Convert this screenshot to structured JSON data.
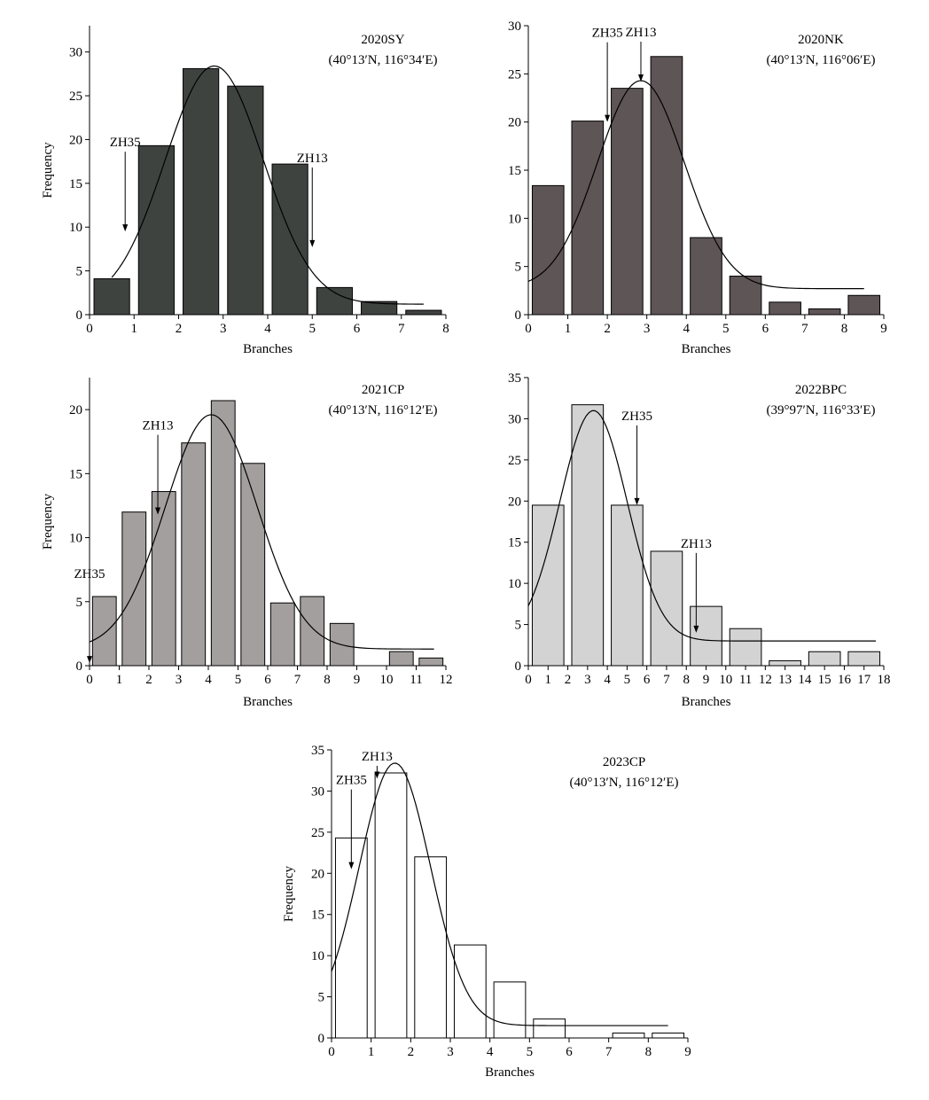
{
  "chart_data": [
    {
      "type": "bar",
      "title": "2020SY",
      "subtitle": "(40°13′N, 116°34′E)",
      "xlabel": "Branches",
      "ylabel": "Frequency",
      "xlim": [
        0,
        8
      ],
      "ylim": [
        0,
        33
      ],
      "xticks": [
        "0",
        "1",
        "2",
        "3",
        "4",
        "5",
        "6",
        "7",
        "8"
      ],
      "yticks": [
        "0",
        "5",
        "10",
        "15",
        "20",
        "25",
        "30"
      ],
      "bar_color": "#3f4340",
      "bins": [
        [
          0.1,
          0.9
        ],
        [
          1.1,
          1.9
        ],
        [
          2.1,
          2.9
        ],
        [
          3.1,
          3.9
        ],
        [
          4.1,
          4.9
        ],
        [
          5.1,
          5.9
        ],
        [
          6.1,
          6.9
        ],
        [
          7.1,
          7.9
        ]
      ],
      "values": [
        4.1,
        19.3,
        28.1,
        26.1,
        17.2,
        3.1,
        1.5,
        0.5
      ],
      "fit_curve": {
        "mean": 2.8,
        "sd": 1.1,
        "peak": 27.2,
        "baseline": 1.2,
        "range": [
          0.5,
          7.5
        ]
      },
      "annotations": [
        {
          "label": "ZH35",
          "x": 0.8,
          "y": 9.5
        },
        {
          "label": "ZH13",
          "x": 5.0,
          "y": 7.7
        }
      ]
    },
    {
      "type": "bar",
      "title": "2020NK",
      "subtitle": "(40°13′N, 116°06′E)",
      "xlabel": "Branches",
      "ylabel": "",
      "xlim": [
        0,
        9
      ],
      "ylim": [
        0,
        30
      ],
      "xticks": [
        "0",
        "1",
        "2",
        "3",
        "4",
        "5",
        "6",
        "7",
        "8",
        "9"
      ],
      "yticks": [
        "0",
        "5",
        "10",
        "15",
        "20",
        "25",
        "30"
      ],
      "bar_color": "#5e5556",
      "bins": [
        [
          0.1,
          0.9
        ],
        [
          1.1,
          1.9
        ],
        [
          2.1,
          2.9
        ],
        [
          3.1,
          3.9
        ],
        [
          4.1,
          4.9
        ],
        [
          5.1,
          5.9
        ],
        [
          6.1,
          6.9
        ],
        [
          7.1,
          7.9
        ],
        [
          8.1,
          8.9
        ]
      ],
      "values": [
        13.4,
        20.1,
        23.5,
        26.8,
        8.0,
        4.0,
        1.3,
        0.6,
        2.0
      ],
      "fit_curve": {
        "mean": 2.85,
        "sd": 1.1,
        "peak": 21.6,
        "baseline": 2.7,
        "range": [
          0,
          8.5
        ]
      },
      "annotations": [
        {
          "label": "ZH35",
          "x": 2.0,
          "y": 20.0
        },
        {
          "label": "ZH13",
          "x": 2.85,
          "y": 24.2
        }
      ]
    },
    {
      "type": "bar",
      "title": "2021CP",
      "subtitle": "(40°13′N, 116°12′E)",
      "xlabel": "Branches",
      "ylabel": "Frequency",
      "xlim": [
        0,
        12
      ],
      "ylim": [
        0,
        22.5
      ],
      "xticks": [
        "0",
        "1",
        "2",
        "3",
        "4",
        "5",
        "6",
        "7",
        "8",
        "9",
        "10",
        "11",
        "12"
      ],
      "yticks": [
        "0",
        "5",
        "10",
        "15",
        "20"
      ],
      "bar_color": "#a39f9e",
      "bins": [
        [
          0.1,
          0.9
        ],
        [
          1.1,
          1.9
        ],
        [
          2.1,
          2.9
        ],
        [
          3.1,
          3.9
        ],
        [
          4.1,
          4.9
        ],
        [
          5.1,
          5.9
        ],
        [
          6.1,
          6.9
        ],
        [
          7.1,
          7.9
        ],
        [
          8.1,
          8.9
        ],
        [
          10.1,
          10.9
        ],
        [
          11.1,
          11.9
        ]
      ],
      "values": [
        5.4,
        12.0,
        13.6,
        17.4,
        20.7,
        15.8,
        4.9,
        5.4,
        3.3,
        1.1,
        0.6
      ],
      "fit_curve": {
        "mean": 4.1,
        "sd": 1.55,
        "peak": 18.3,
        "baseline": 1.3,
        "range": [
          0,
          11.6
        ]
      },
      "annotations": [
        {
          "label": "ZH35",
          "x": 0.0,
          "y": 0.2
        },
        {
          "label": "ZH13",
          "x": 2.3,
          "y": 11.8
        }
      ]
    },
    {
      "type": "bar",
      "title": "2022BPC",
      "subtitle": "(39°97′N, 116°33′E)",
      "xlabel": "Branches",
      "ylabel": "",
      "xlim": [
        0,
        18
      ],
      "ylim": [
        0,
        35
      ],
      "xticks": [
        "0",
        "1",
        "2",
        "3",
        "4",
        "5",
        "6",
        "7",
        "8",
        "9",
        "10",
        "11",
        "12",
        "13",
        "14",
        "15",
        "16",
        "17",
        "18"
      ],
      "yticks": [
        "0",
        "5",
        "10",
        "15",
        "20",
        "25",
        "30",
        "35"
      ],
      "bar_color": "#d4d3d4",
      "bins": [
        [
          0.2,
          1.8
        ],
        [
          2.2,
          3.8
        ],
        [
          4.2,
          5.8
        ],
        [
          6.2,
          7.8
        ],
        [
          8.2,
          9.8
        ],
        [
          10.2,
          11.8
        ],
        [
          12.2,
          13.8
        ],
        [
          14.2,
          15.8
        ],
        [
          16.2,
          17.8
        ]
      ],
      "values": [
        19.5,
        31.7,
        19.5,
        13.9,
        7.2,
        4.5,
        0.6,
        1.7,
        1.7
      ],
      "fit_curve": {
        "mean": 3.3,
        "sd": 1.7,
        "peak": 28.0,
        "baseline": 3.0,
        "range": [
          0,
          17.6
        ]
      },
      "annotations": [
        {
          "label": "ZH35",
          "x": 5.5,
          "y": 19.5
        },
        {
          "label": "ZH13",
          "x": 8.5,
          "y": 4.0
        }
      ]
    },
    {
      "type": "bar",
      "title": "2023CP",
      "subtitle": "(40°13′N, 116°12′E)",
      "xlabel": "Branches",
      "ylabel": "Frequency",
      "xlim": [
        0,
        9
      ],
      "ylim": [
        0,
        35
      ],
      "xticks": [
        "0",
        "1",
        "2",
        "3",
        "4",
        "5",
        "6",
        "7",
        "8",
        "9"
      ],
      "yticks": [
        "0",
        "5",
        "10",
        "15",
        "20",
        "25",
        "30",
        "35"
      ],
      "bar_color": "#ffffff",
      "bins": [
        [
          0.1,
          0.9
        ],
        [
          1.1,
          1.9
        ],
        [
          2.1,
          2.9
        ],
        [
          3.1,
          3.9
        ],
        [
          4.1,
          4.9
        ],
        [
          5.1,
          5.9
        ],
        [
          7.1,
          7.9
        ],
        [
          8.1,
          8.9
        ]
      ],
      "values": [
        24.3,
        32.2,
        22.0,
        11.3,
        6.8,
        2.3,
        0.6,
        0.6
      ],
      "fit_curve": {
        "mean": 1.6,
        "sd": 0.9,
        "peak": 31.9,
        "baseline": 1.5,
        "range": [
          0,
          8.5
        ]
      },
      "annotations": [
        {
          "label": "ZH35",
          "x": 0.5,
          "y": 20.5
        },
        {
          "label": "ZH13",
          "x": 1.15,
          "y": 31.5
        }
      ]
    }
  ]
}
